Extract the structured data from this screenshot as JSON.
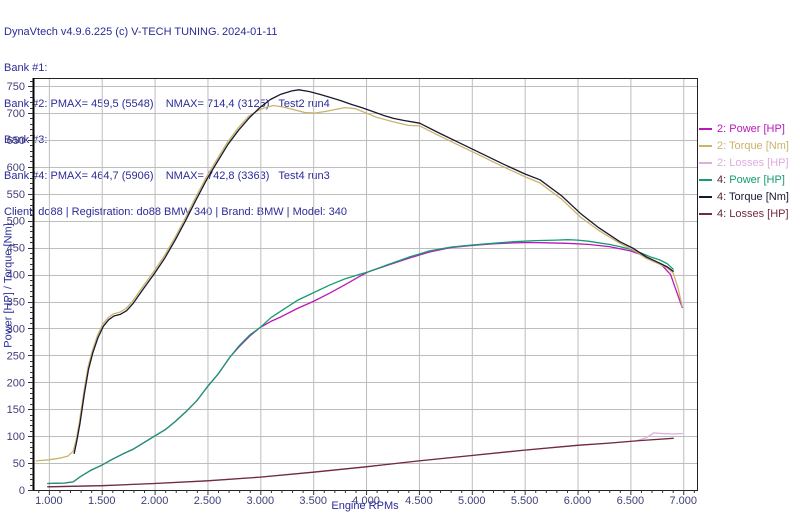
{
  "header": {
    "title_line": "DynaVtech v4.9.6.225 (c) V-TECH TUNING.",
    "date": "2024-01-11",
    "bank_lines": [
      "Bank #1:",
      "Bank #2: PMAX= 459,5 (5548)    NMAX= 714,4 (3125)   Test2 run4",
      "Bank #3:",
      "Bank #4: PMAX= 464,7 (5906)    NMAX= 742,8 (3363)   Test4 run3"
    ],
    "client_line": "Client: do88 | Registration: do88 BMW 340 | Brand: BMW | Model: 340"
  },
  "colors": {
    "header_text": "#2b2b99",
    "tick_text": "#3f3f78",
    "grid": "#bdbdbd",
    "axis_border": "#222222",
    "axis_left": "#000000",
    "background": "#ffffff"
  },
  "chart_data": {
    "type": "line",
    "xlabel": "Engine RPMs",
    "ylabel": "Power [HP] / Torque [Nm]",
    "xlim": [
      850,
      7130
    ],
    "ylim": [
      0,
      765
    ],
    "grid": true,
    "legend_position": "right",
    "x_ticks": [
      {
        "value": 1000,
        "label": "1.000"
      },
      {
        "value": 1500,
        "label": "1.500"
      },
      {
        "value": 2000,
        "label": "2.000"
      },
      {
        "value": 2500,
        "label": "2.500"
      },
      {
        "value": 3000,
        "label": "3.000"
      },
      {
        "value": 3500,
        "label": "3.500"
      },
      {
        "value": 4000,
        "label": "4.000"
      },
      {
        "value": 4500,
        "label": "4.500"
      },
      {
        "value": 5000,
        "label": "5.000"
      },
      {
        "value": 5500,
        "label": "5.500"
      },
      {
        "value": 6000,
        "label": "6.000"
      },
      {
        "value": 6500,
        "label": "6.500"
      },
      {
        "value": 7000,
        "label": "7.000"
      }
    ],
    "x_minor_step": 100,
    "y_ticks": [
      0,
      50,
      100,
      150,
      200,
      250,
      300,
      350,
      400,
      450,
      500,
      550,
      600,
      650,
      700,
      750
    ],
    "y_minor_step": 10,
    "peaks": {
      "run2": {
        "pmax": "459,5 (5548)",
        "nmax": "714,4 (3125)",
        "label": "Test2 run4"
      },
      "run4": {
        "pmax": "464,7 (5906)",
        "nmax": "742,8 (3363)",
        "label": "Test4 run3"
      }
    },
    "series": [
      {
        "name": "2: Power [HP]",
        "color": "#b919b9",
        "prefix_color": "#b919b9",
        "points": [
          [
            990,
            12
          ],
          [
            1150,
            13
          ],
          [
            1230,
            15
          ],
          [
            1300,
            25
          ],
          [
            1400,
            37
          ],
          [
            1500,
            46
          ],
          [
            1600,
            57
          ],
          [
            1700,
            67
          ],
          [
            1800,
            76
          ],
          [
            1900,
            88
          ],
          [
            2000,
            100
          ],
          [
            2100,
            112
          ],
          [
            2200,
            128
          ],
          [
            2300,
            146
          ],
          [
            2400,
            166
          ],
          [
            2500,
            192
          ],
          [
            2600,
            215
          ],
          [
            2713,
            247
          ],
          [
            2800,
            266
          ],
          [
            2900,
            286
          ],
          [
            3000,
            302
          ],
          [
            3100,
            313
          ],
          [
            3200,
            322
          ],
          [
            3350,
            337
          ],
          [
            3500,
            350
          ],
          [
            3650,
            365
          ],
          [
            3800,
            381
          ],
          [
            3950,
            398
          ],
          [
            4020,
            405
          ],
          [
            4200,
            417
          ],
          [
            4400,
            430
          ],
          [
            4600,
            442
          ],
          [
            4800,
            450
          ],
          [
            5000,
            454
          ],
          [
            5200,
            457
          ],
          [
            5400,
            459
          ],
          [
            5548,
            459.5
          ],
          [
            5700,
            459
          ],
          [
            5900,
            458
          ],
          [
            6100,
            456
          ],
          [
            6300,
            452
          ],
          [
            6500,
            444
          ],
          [
            6600,
            437
          ],
          [
            6700,
            428
          ],
          [
            6800,
            417
          ],
          [
            6880,
            400
          ],
          [
            6930,
            372
          ],
          [
            6990,
            339
          ]
        ]
      },
      {
        "name": "2: Torque [Nm]",
        "color": "#c9b46a",
        "prefix_color": "#c9b46a",
        "points": [
          [
            880,
            54
          ],
          [
            1000,
            56
          ],
          [
            1100,
            59
          ],
          [
            1180,
            63
          ],
          [
            1230,
            72
          ],
          [
            1260,
            95
          ],
          [
            1290,
            128
          ],
          [
            1330,
            182
          ],
          [
            1370,
            228
          ],
          [
            1410,
            258
          ],
          [
            1460,
            287
          ],
          [
            1510,
            308
          ],
          [
            1560,
            320
          ],
          [
            1610,
            327
          ],
          [
            1670,
            330
          ],
          [
            1730,
            337
          ],
          [
            1790,
            350
          ],
          [
            1890,
            378
          ],
          [
            1990,
            405
          ],
          [
            2090,
            434
          ],
          [
            2190,
            468
          ],
          [
            2290,
            505
          ],
          [
            2390,
            544
          ],
          [
            2490,
            581
          ],
          [
            2590,
            614
          ],
          [
            2690,
            646
          ],
          [
            2790,
            672
          ],
          [
            2890,
            694
          ],
          [
            2990,
            706
          ],
          [
            3060,
            711
          ],
          [
            3125,
            714
          ],
          [
            3220,
            711
          ],
          [
            3320,
            706
          ],
          [
            3420,
            701
          ],
          [
            3520,
            700
          ],
          [
            3620,
            703
          ],
          [
            3720,
            707
          ],
          [
            3800,
            710
          ],
          [
            3900,
            708
          ],
          [
            4000,
            700
          ],
          [
            4100,
            692
          ],
          [
            4250,
            684
          ],
          [
            4400,
            677
          ],
          [
            4507,
            676
          ],
          [
            4700,
            657
          ],
          [
            4900,
            638
          ],
          [
            5100,
            619
          ],
          [
            5300,
            600
          ],
          [
            5500,
            582
          ],
          [
            5645,
            570
          ],
          [
            5850,
            540
          ],
          [
            6025,
            507
          ],
          [
            6200,
            482
          ],
          [
            6400,
            458
          ],
          [
            6525,
            446
          ],
          [
            6650,
            430
          ],
          [
            6780,
            419
          ],
          [
            6850,
            412
          ],
          [
            6905,
            403
          ],
          [
            6950,
            375
          ],
          [
            6990,
            341
          ]
        ]
      },
      {
        "name": "2: Losses [HP]",
        "color": "#ddadde",
        "prefix_color": "#ddadde",
        "points": [
          [
            990,
            6
          ],
          [
            1500,
            8
          ],
          [
            2000,
            12
          ],
          [
            2500,
            17
          ],
          [
            3000,
            24
          ],
          [
            3500,
            33
          ],
          [
            4000,
            43
          ],
          [
            4500,
            54
          ],
          [
            5000,
            64
          ],
          [
            5500,
            74
          ],
          [
            6000,
            83
          ],
          [
            6300,
            87
          ],
          [
            6550,
            91
          ],
          [
            6650,
            97
          ],
          [
            6720,
            106
          ],
          [
            6800,
            105
          ],
          [
            6900,
            104
          ],
          [
            6990,
            105
          ]
        ]
      },
      {
        "name": "4: Power [HP]",
        "color": "#149c74",
        "prefix_color": "#5a2430",
        "points": [
          [
            990,
            12
          ],
          [
            1150,
            13
          ],
          [
            1230,
            15
          ],
          [
            1300,
            25
          ],
          [
            1400,
            37
          ],
          [
            1500,
            46
          ],
          [
            1600,
            57
          ],
          [
            1700,
            67
          ],
          [
            1800,
            76
          ],
          [
            1900,
            88
          ],
          [
            2000,
            100
          ],
          [
            2100,
            112
          ],
          [
            2200,
            128
          ],
          [
            2300,
            146
          ],
          [
            2400,
            166
          ],
          [
            2500,
            192
          ],
          [
            2600,
            215
          ],
          [
            2713,
            247
          ],
          [
            2800,
            268
          ],
          [
            2900,
            288
          ],
          [
            3000,
            302
          ],
          [
            3100,
            320
          ],
          [
            3200,
            333
          ],
          [
            3350,
            352
          ],
          [
            3500,
            366
          ],
          [
            3650,
            380
          ],
          [
            3800,
            392
          ],
          [
            3950,
            401
          ],
          [
            4020,
            405
          ],
          [
            4200,
            418
          ],
          [
            4400,
            432
          ],
          [
            4600,
            444
          ],
          [
            4800,
            451
          ],
          [
            5000,
            455
          ],
          [
            5200,
            458
          ],
          [
            5400,
            461
          ],
          [
            5600,
            463
          ],
          [
            5800,
            464
          ],
          [
            5906,
            464.7
          ],
          [
            6000,
            464
          ],
          [
            6100,
            462
          ],
          [
            6200,
            459
          ],
          [
            6300,
            456
          ],
          [
            6400,
            452
          ],
          [
            6500,
            447
          ],
          [
            6600,
            440
          ],
          [
            6700,
            432
          ],
          [
            6780,
            427
          ],
          [
            6850,
            420
          ],
          [
            6905,
            410
          ]
        ]
      },
      {
        "name": "4: Torque [Nm]",
        "color": "#181832",
        "prefix_color": "#5a2430",
        "points": [
          [
            1240,
            68
          ],
          [
            1265,
            92
          ],
          [
            1295,
            125
          ],
          [
            1335,
            178
          ],
          [
            1375,
            224
          ],
          [
            1415,
            254
          ],
          [
            1465,
            283
          ],
          [
            1515,
            304
          ],
          [
            1565,
            316
          ],
          [
            1615,
            323
          ],
          [
            1675,
            326
          ],
          [
            1735,
            333
          ],
          [
            1795,
            346
          ],
          [
            1895,
            374
          ],
          [
            1995,
            401
          ],
          [
            2095,
            430
          ],
          [
            2195,
            464
          ],
          [
            2295,
            501
          ],
          [
            2395,
            540
          ],
          [
            2495,
            577
          ],
          [
            2595,
            610
          ],
          [
            2695,
            642
          ],
          [
            2795,
            668
          ],
          [
            2895,
            691
          ],
          [
            2995,
            710
          ],
          [
            3095,
            725
          ],
          [
            3195,
            735
          ],
          [
            3300,
            741
          ],
          [
            3363,
            743
          ],
          [
            3460,
            740
          ],
          [
            3560,
            735
          ],
          [
            3660,
            729
          ],
          [
            3760,
            723
          ],
          [
            3860,
            716
          ],
          [
            3960,
            710
          ],
          [
            4060,
            703
          ],
          [
            4160,
            696
          ],
          [
            4260,
            690
          ],
          [
            4360,
            686
          ],
          [
            4507,
            681
          ],
          [
            4700,
            662
          ],
          [
            4900,
            643
          ],
          [
            5100,
            624
          ],
          [
            5300,
            605
          ],
          [
            5500,
            587
          ],
          [
            5645,
            576
          ],
          [
            5850,
            546
          ],
          [
            6025,
            514
          ],
          [
            6200,
            487
          ],
          [
            6400,
            461
          ],
          [
            6525,
            449
          ],
          [
            6650,
            433
          ],
          [
            6780,
            421
          ],
          [
            6850,
            414
          ],
          [
            6905,
            406
          ]
        ]
      },
      {
        "name": "4: Losses [HP]",
        "color": "#6f2b3f",
        "prefix_color": "#5a2430",
        "points": [
          [
            990,
            6
          ],
          [
            1500,
            8
          ],
          [
            2000,
            12
          ],
          [
            2500,
            17
          ],
          [
            3000,
            24
          ],
          [
            3500,
            33
          ],
          [
            4000,
            43
          ],
          [
            4500,
            54
          ],
          [
            5000,
            64
          ],
          [
            5500,
            74
          ],
          [
            6000,
            83
          ],
          [
            6300,
            87
          ],
          [
            6600,
            92
          ],
          [
            6905,
            96
          ]
        ]
      }
    ]
  }
}
